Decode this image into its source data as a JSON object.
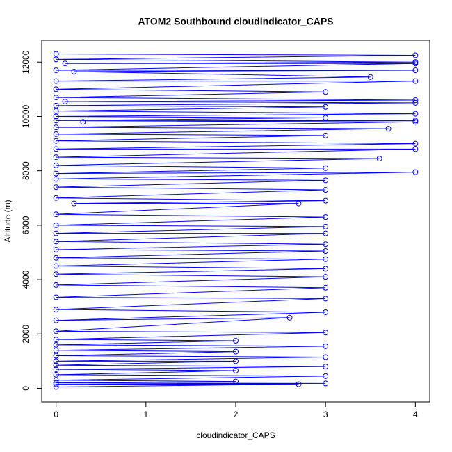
{
  "chart_data": {
    "type": "line",
    "markers": true,
    "title": "ATOM2 Southbound cloudindicator_CAPS",
    "x_label": "cloudindicator_CAPS",
    "y_label": "Altitude (m)",
    "color": "#0000ff",
    "xlim": [
      -0.16,
      4.16
    ],
    "ylim": [
      -500,
      12800
    ],
    "xticks": [
      0,
      1,
      2,
      3,
      4
    ],
    "yticks": [
      0,
      2000,
      4000,
      6000,
      8000,
      10000,
      12000
    ],
    "x": [
      0,
      4,
      0,
      4,
      0.1,
      4,
      0,
      4,
      0.2,
      3.5,
      0,
      4,
      0,
      3,
      0,
      4,
      0.1,
      4,
      0,
      3,
      0,
      4,
      0,
      3,
      0,
      4,
      0.3,
      4,
      0,
      3.7,
      0,
      3,
      0,
      4,
      0,
      4,
      0,
      3.6,
      0,
      3,
      0,
      4,
      0,
      3,
      0,
      3,
      0,
      3,
      0.2,
      2.7,
      0,
      3,
      0,
      3,
      0,
      3,
      0,
      3,
      0,
      3,
      0,
      3,
      0,
      3,
      0,
      3,
      0,
      3,
      0,
      3,
      0,
      3,
      0,
      2.6,
      0,
      3,
      0,
      2,
      0,
      3,
      0,
      2,
      0,
      3,
      0,
      2,
      0,
      3,
      0,
      2,
      0,
      3,
      0,
      2,
      0,
      3,
      0,
      2.7,
      0
    ],
    "values": [
      12300,
      12250,
      12100,
      12000,
      11950,
      11950,
      11700,
      11700,
      11650,
      11450,
      11300,
      11300,
      11000,
      10900,
      10700,
      10600,
      10550,
      10500,
      10400,
      10350,
      10200,
      10100,
      10000,
      9950,
      9850,
      9850,
      9800,
      9800,
      9600,
      9550,
      9350,
      9300,
      9100,
      9000,
      8800,
      8800,
      8500,
      8450,
      8200,
      8100,
      7900,
      7950,
      7700,
      7650,
      7400,
      7300,
      7000,
      6900,
      6800,
      6800,
      6400,
      6300,
      6000,
      5950,
      5700,
      5700,
      5400,
      5300,
      5100,
      5050,
      4800,
      4750,
      4500,
      4400,
      4200,
      4100,
      3800,
      3700,
      3350,
      3300,
      2900,
      2800,
      2500,
      2600,
      2100,
      2050,
      1800,
      1750,
      1600,
      1550,
      1400,
      1350,
      1200,
      1150,
      1000,
      1000,
      850,
      800,
      700,
      650,
      500,
      450,
      300,
      250,
      200,
      180,
      150,
      150,
      50
    ]
  }
}
